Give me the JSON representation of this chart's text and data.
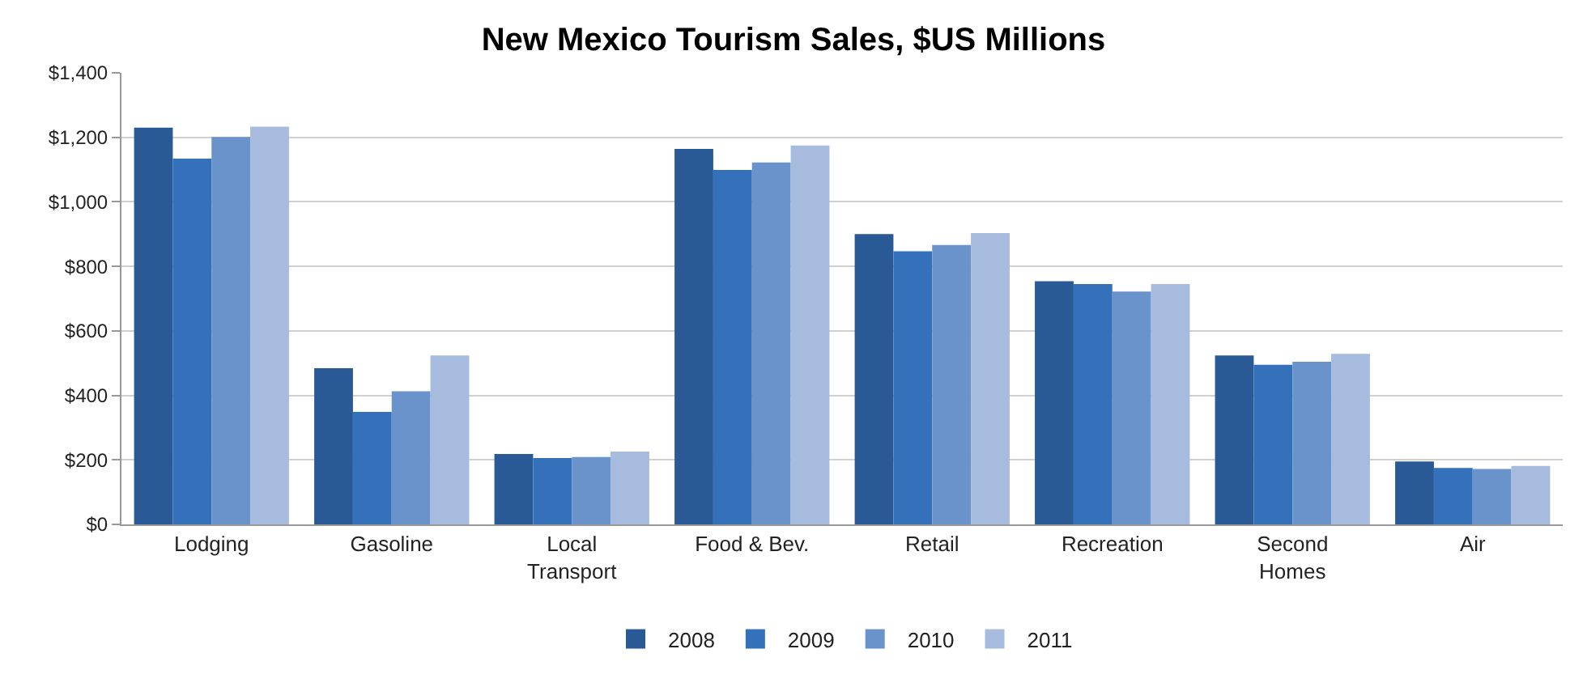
{
  "chart_data": {
    "type": "bar",
    "title": "New Mexico Tourism Sales, $US Millions",
    "categories": [
      "Lodging",
      "Gasoline",
      "Local\nTransport",
      "Food & Bev.",
      "Retail",
      "Recreation",
      "Second\nHomes",
      "Air"
    ],
    "series": [
      {
        "name": "2008",
        "color": "#2a5a96",
        "values": [
          1230,
          484,
          218,
          1164,
          900,
          754,
          524,
          195
        ]
      },
      {
        "name": "2009",
        "color": "#3570bb",
        "values": [
          1134,
          349,
          206,
          1099,
          847,
          745,
          495,
          175
        ]
      },
      {
        "name": "2010",
        "color": "#6b93cb",
        "values": [
          1201,
          413,
          209,
          1122,
          866,
          722,
          504,
          172
        ]
      },
      {
        "name": "2011",
        "color": "#a6bbdd",
        "values": [
          1233,
          524,
          226,
          1175,
          903,
          745,
          529,
          181
        ]
      }
    ],
    "ylim": [
      0,
      1400
    ],
    "yticks": [
      {
        "value": 0,
        "label": "$0"
      },
      {
        "value": 200,
        "label": "$200"
      },
      {
        "value": 400,
        "label": "$400"
      },
      {
        "value": 600,
        "label": "$600"
      },
      {
        "value": 800,
        "label": "$800"
      },
      {
        "value": 1000,
        "label": "$1,000"
      },
      {
        "value": 1200,
        "label": "$1,200"
      },
      {
        "value": 1400,
        "label": "$1,400"
      }
    ],
    "grid": "y",
    "legend": "bottom"
  }
}
